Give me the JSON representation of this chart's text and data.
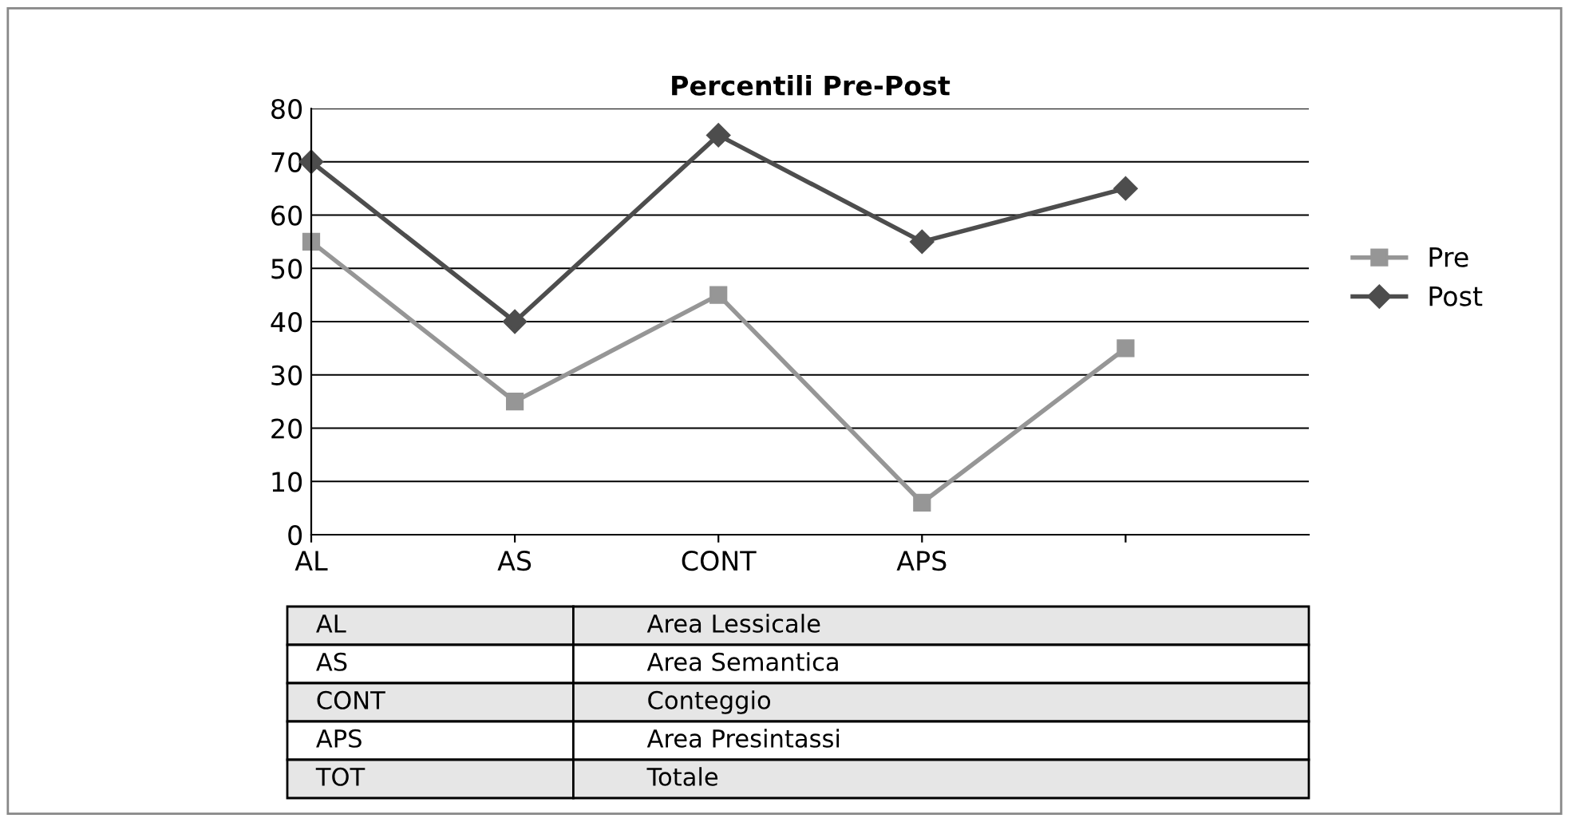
{
  "chart_data": {
    "type": "line",
    "title": "Percentili Pre-Post",
    "categories": [
      "AL",
      "AS",
      "CONT",
      "APS",
      null
    ],
    "series": [
      {
        "name": "Pre",
        "color": "#969696",
        "values": [
          55,
          25,
          45,
          6,
          35
        ],
        "marker": "square"
      },
      {
        "name": "Post",
        "color": "#4d4d4d",
        "values": [
          70,
          40,
          75,
          55,
          65
        ],
        "marker": "diamond"
      }
    ],
    "ylim": [
      0,
      80
    ],
    "yticks": [
      0,
      10,
      20,
      30,
      40,
      50,
      60,
      70,
      80
    ],
    "grid": "y",
    "legend": "right",
    "line_style": "solid",
    "annotations": [
      "AL",
      "Area Lessicale",
      "AS",
      "Area Semantica",
      "CONT",
      "Conteggio",
      "APS",
      "Area Presintassi",
      "TOT",
      "Totale"
    ]
  }
}
